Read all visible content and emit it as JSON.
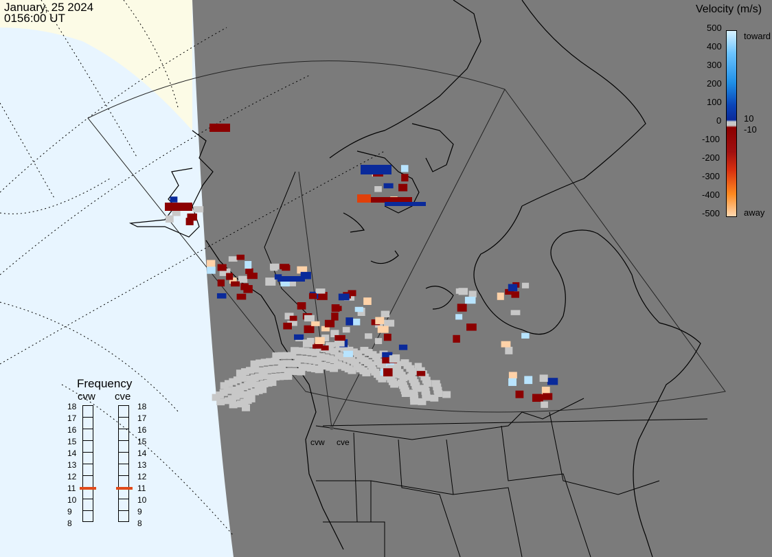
{
  "header": {
    "date": "January, 25 2024",
    "time": "0156:00 UT"
  },
  "legend": {
    "title": "Velocity (m/s)",
    "ticks": [
      "500",
      "400",
      "300",
      "200",
      "100",
      "10",
      "0",
      "-10",
      "-100",
      "-200",
      "-300",
      "-400",
      "-500"
    ],
    "toward_label": "toward",
    "away_label": "away",
    "colors": {
      "toward_light": "#b8e4ff",
      "toward_mid": "#1f8fe6",
      "toward_dark": "#0a2a9a",
      "zero": "#c8c8c8",
      "away_dark": "#8b0000",
      "away_mid": "#e0400a",
      "away_light": "#ffd2a8"
    }
  },
  "frequency": {
    "title": "Frequency",
    "radars": [
      "cvw",
      "cve"
    ],
    "scale": [
      "18",
      "17",
      "16",
      "15",
      "14",
      "13",
      "12",
      "11",
      "10",
      "9",
      "8"
    ],
    "values": {
      "cvw": 11,
      "cve": 11
    },
    "marker_color": "#e04a1a"
  },
  "map_labels": {
    "cvw": "cvw",
    "cve": "cve"
  }
}
